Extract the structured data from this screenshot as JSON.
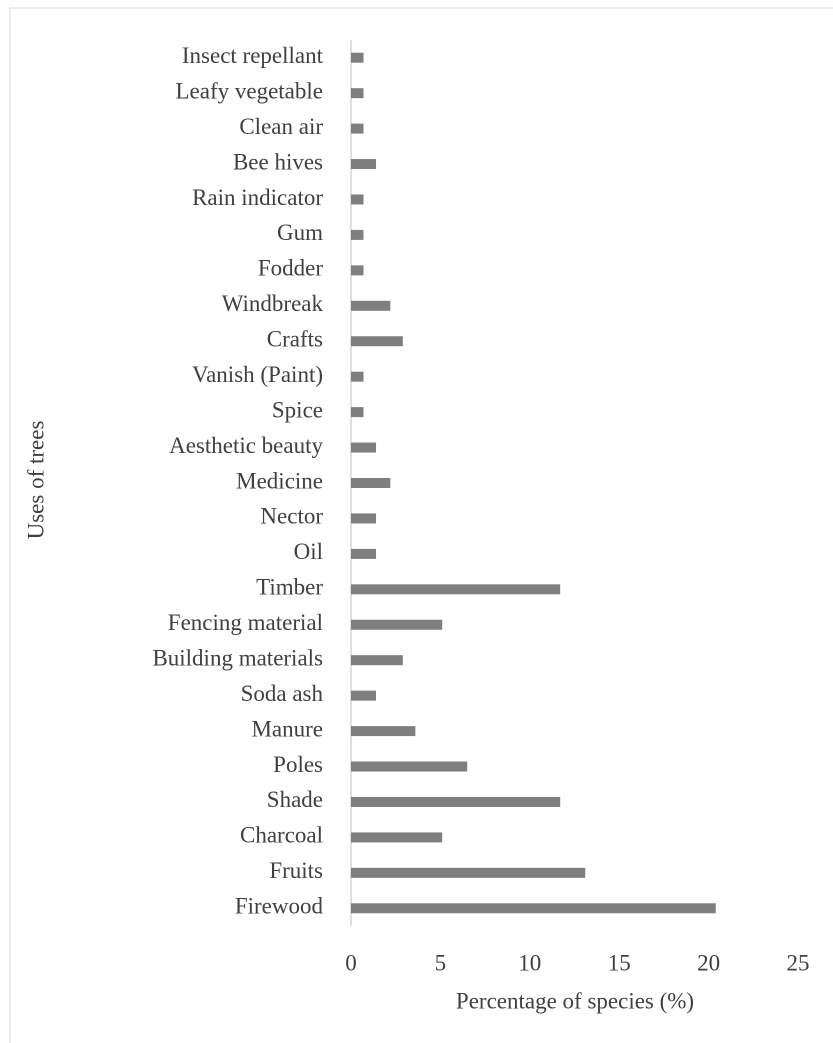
{
  "chart_data": {
    "type": "barh",
    "categories": [
      "Insect repellant",
      "Leafy vegetable",
      "Clean air",
      "Bee hives",
      "Rain indicator",
      "Gum",
      "Fodder",
      "Windbreak",
      "Crafts",
      "Vanish (Paint)",
      "Spice",
      "Aesthetic beauty",
      "Medicine",
      "Nector",
      "Oil",
      "Timber",
      "Fencing material",
      "Building materials",
      "Soda ash",
      "Manure",
      "Poles",
      "Shade",
      "Charcoal",
      "Fruits",
      "Firewood"
    ],
    "values": [
      0.7,
      0.7,
      0.7,
      1.4,
      0.7,
      0.7,
      0.7,
      2.2,
      2.9,
      0.7,
      0.7,
      1.4,
      2.2,
      1.4,
      1.4,
      11.7,
      5.1,
      2.9,
      1.4,
      3.6,
      6.5,
      11.7,
      5.1,
      13.1,
      20.4
    ],
    "color": "#7f7f7f",
    "xlim": [
      0,
      25
    ],
    "xticks": [
      0,
      5,
      10,
      15,
      20,
      25
    ],
    "xlabel": "Percentage  of species  (%)",
    "ylabel": "Uses of trees"
  }
}
